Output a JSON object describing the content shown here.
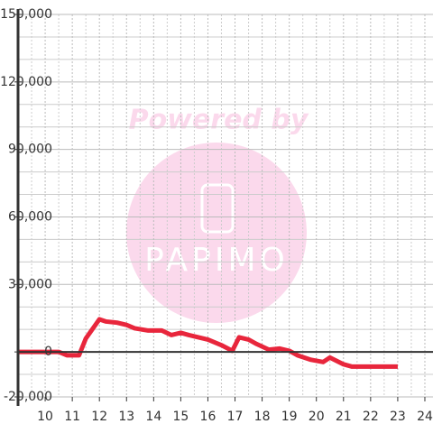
{
  "chart_data": {
    "type": "line",
    "x": [
      9,
      10.5,
      10.8,
      11.25,
      11.5,
      12,
      12.25,
      12.65,
      13,
      13.3,
      13.8,
      14.3,
      14.65,
      15,
      15.3,
      16,
      16.5,
      16.9,
      17.15,
      17.5,
      17.8,
      18.25,
      18.65,
      19,
      19.3,
      19.8,
      20.25,
      20.5,
      21,
      21.3,
      23
    ],
    "values": [
      0,
      0,
      -1500,
      -1500,
      6000,
      14500,
      13500,
      13000,
      12000,
      10500,
      9500,
      9500,
      7500,
      8500,
      7500,
      5500,
      3000,
      500,
      6500,
      5500,
      3500,
      1000,
      1500,
      500,
      -1500,
      -3500,
      -4500,
      -2500,
      -5500,
      -6500,
      -6500
    ],
    "color": "#e8263c",
    "xlim": [
      9,
      24.3
    ],
    "xticks": [
      10,
      11,
      12,
      13,
      14,
      15,
      16,
      17,
      18,
      19,
      20,
      21,
      22,
      23,
      24
    ],
    "ylim": [
      -20000,
      150000
    ],
    "yticks": [
      {
        "value": -20000,
        "label": "-20,000"
      },
      0,
      {
        "value": 30000,
        "label": "30,000"
      },
      {
        "value": 60000,
        "label": "60,000"
      },
      {
        "value": 90000,
        "label": "90,000"
      },
      {
        "value": 120000,
        "label": "120,000"
      },
      {
        "value": 150000,
        "label": "150,000"
      }
    ],
    "grid": true
  },
  "watermark": {
    "text": "Powered by",
    "logo": "PAPIMO"
  }
}
